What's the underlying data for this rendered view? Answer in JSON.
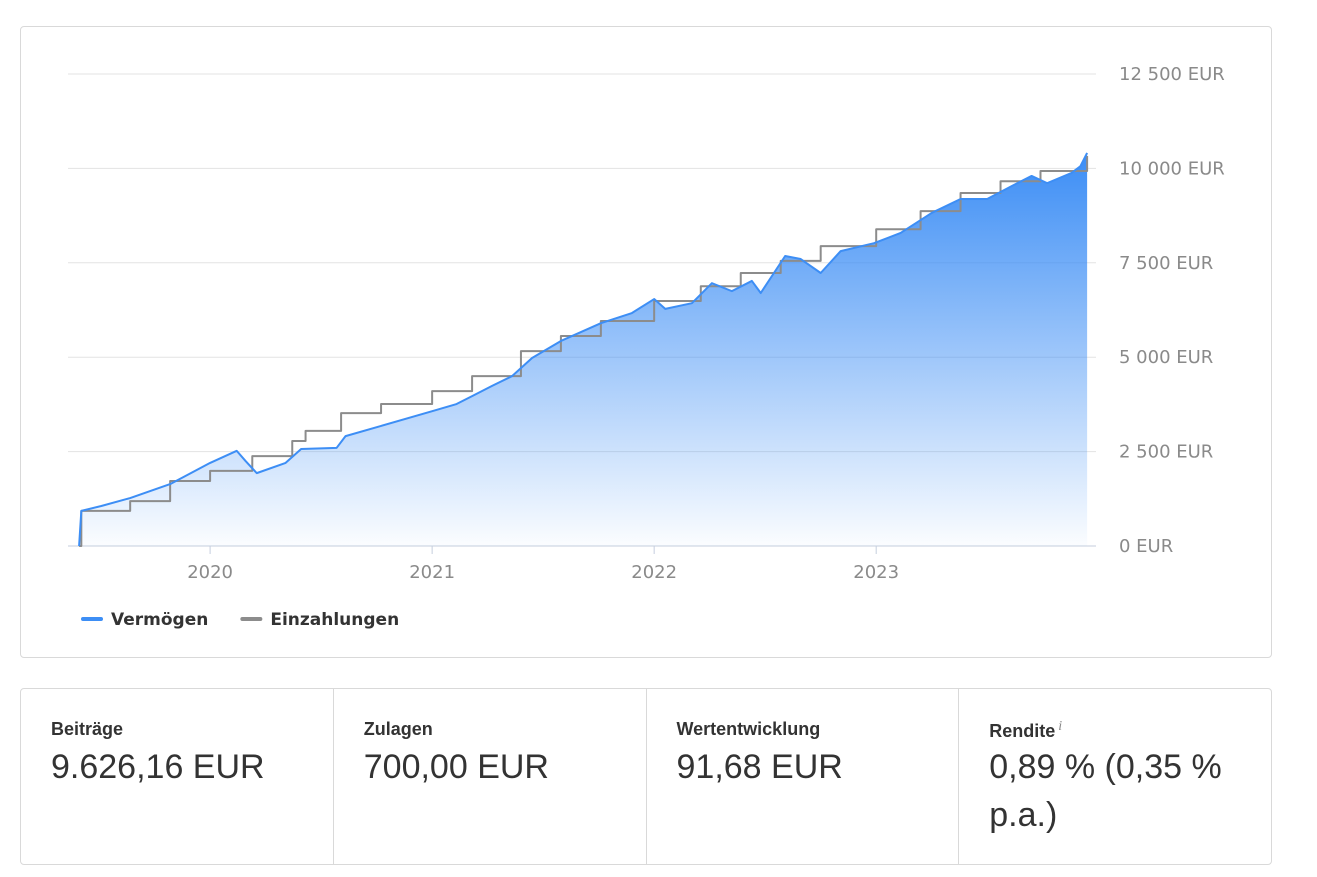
{
  "chart_data": {
    "type": "line",
    "xlim": [
      2019.36,
      2023.99
    ],
    "xticks": [
      2020,
      2021,
      2022,
      2023
    ],
    "ylim": [
      0,
      12500
    ],
    "yticks": [
      {
        "value": 0,
        "label": "0 EUR"
      },
      {
        "value": 2500,
        "label": "2 500 EUR"
      },
      {
        "value": 5000,
        "label": "5 000 EUR"
      },
      {
        "value": 7500,
        "label": "7 500 EUR"
      },
      {
        "value": 10000,
        "label": "10 000 EUR"
      },
      {
        "value": 12500,
        "label": "12 500 EUR"
      }
    ],
    "grid": true,
    "legend": "bottom-left",
    "series": [
      {
        "name": "Vermögen",
        "color": "#3d8ef5",
        "area": true,
        "x": [
          2019.41,
          2019.42,
          2019.51,
          2019.64,
          2019.82,
          2020.0,
          2020.12,
          2020.16,
          2020.21,
          2020.34,
          2020.41,
          2020.57,
          2020.61,
          2020.77,
          2021.0,
          2021.11,
          2021.18,
          2021.27,
          2021.36,
          2021.45,
          2021.58,
          2021.76,
          2021.9,
          2022.0,
          2022.05,
          2022.17,
          2022.26,
          2022.35,
          2022.44,
          2022.48,
          2022.59,
          2022.66,
          2022.75,
          2022.84,
          2022.99,
          2023.11,
          2023.25,
          2023.38,
          2023.5,
          2023.61,
          2023.7,
          2023.77,
          2023.88,
          2023.92,
          2023.95
        ],
        "values": [
          0,
          930,
          1060,
          1270,
          1640,
          2200,
          2520,
          2250,
          1930,
          2200,
          2570,
          2600,
          2910,
          3180,
          3570,
          3760,
          3970,
          4240,
          4500,
          4980,
          5430,
          5900,
          6170,
          6540,
          6280,
          6430,
          6960,
          6750,
          7020,
          6700,
          7680,
          7600,
          7230,
          7810,
          8020,
          8290,
          8820,
          9190,
          9190,
          9530,
          9800,
          9610,
          9880,
          10060,
          10410
        ]
      },
      {
        "name": "Einzahlungen",
        "color": "#8c8c8c",
        "area": false,
        "x": [
          2019.41,
          2019.42,
          2019.42,
          2019.64,
          2019.64,
          2019.82,
          2019.82,
          2020.0,
          2020.0,
          2020.19,
          2020.19,
          2020.37,
          2020.37,
          2020.43,
          2020.43,
          2020.59,
          2020.59,
          2020.77,
          2020.77,
          2021.0,
          2021.0,
          2021.18,
          2021.18,
          2021.4,
          2021.4,
          2021.58,
          2021.58,
          2021.76,
          2021.76,
          2022.0,
          2022.0,
          2022.21,
          2022.21,
          2022.39,
          2022.39,
          2022.57,
          2022.57,
          2022.75,
          2022.75,
          2023.0,
          2023.0,
          2023.2,
          2023.2,
          2023.38,
          2023.38,
          2023.56,
          2023.56,
          2023.74,
          2023.74,
          2023.95,
          2023.95
        ],
        "values": [
          0,
          0,
          930,
          930,
          1190,
          1190,
          1720,
          1720,
          1990,
          1990,
          2380,
          2380,
          2780,
          2780,
          3050,
          3050,
          3520,
          3520,
          3760,
          3760,
          4100,
          4100,
          4500,
          4500,
          5160,
          5160,
          5560,
          5560,
          5960,
          5960,
          6490,
          6490,
          6880,
          6880,
          7230,
          7230,
          7550,
          7550,
          7940,
          7940,
          8390,
          8390,
          8870,
          8870,
          9350,
          9350,
          9660,
          9660,
          9930,
          9930,
          10330
        ]
      }
    ]
  },
  "summary": [
    {
      "label": "Beiträge",
      "value": "9.626,16 EUR"
    },
    {
      "label": "Zulagen",
      "value": "700,00 EUR"
    },
    {
      "label": "Wertentwicklung",
      "value": "91,68 EUR"
    },
    {
      "label": "Rendite",
      "note": "i",
      "value": "0,89 % (0,35 % p.a.)"
    }
  ]
}
